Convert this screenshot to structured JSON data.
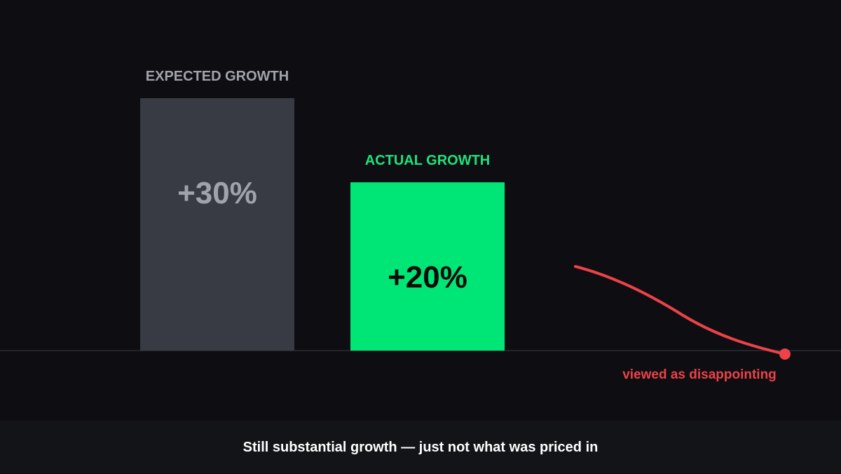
{
  "chart_data": {
    "type": "bar",
    "categories": [
      "EXPECTED GROWTH",
      "ACTUAL GROWTH"
    ],
    "values": [
      30,
      20
    ],
    "value_labels": [
      "+30%",
      "+20%"
    ],
    "ylim": [
      0,
      36
    ],
    "grid": false,
    "title": "",
    "xlabel": "",
    "ylabel": "",
    "annotation": "viewed as disappointing",
    "colors": {
      "background": "#0e0e12",
      "expected_bar": "#383b43",
      "expected_text": "#a1a3ab",
      "actual_bar": "#00e676",
      "actual_label": "#1de37c",
      "actual_value": "#0a0a0a",
      "decline": "#ec4248",
      "baseline": "#2c2d32"
    }
  },
  "footer": {
    "caption": "Still substantial growth — just not what was priced in"
  }
}
